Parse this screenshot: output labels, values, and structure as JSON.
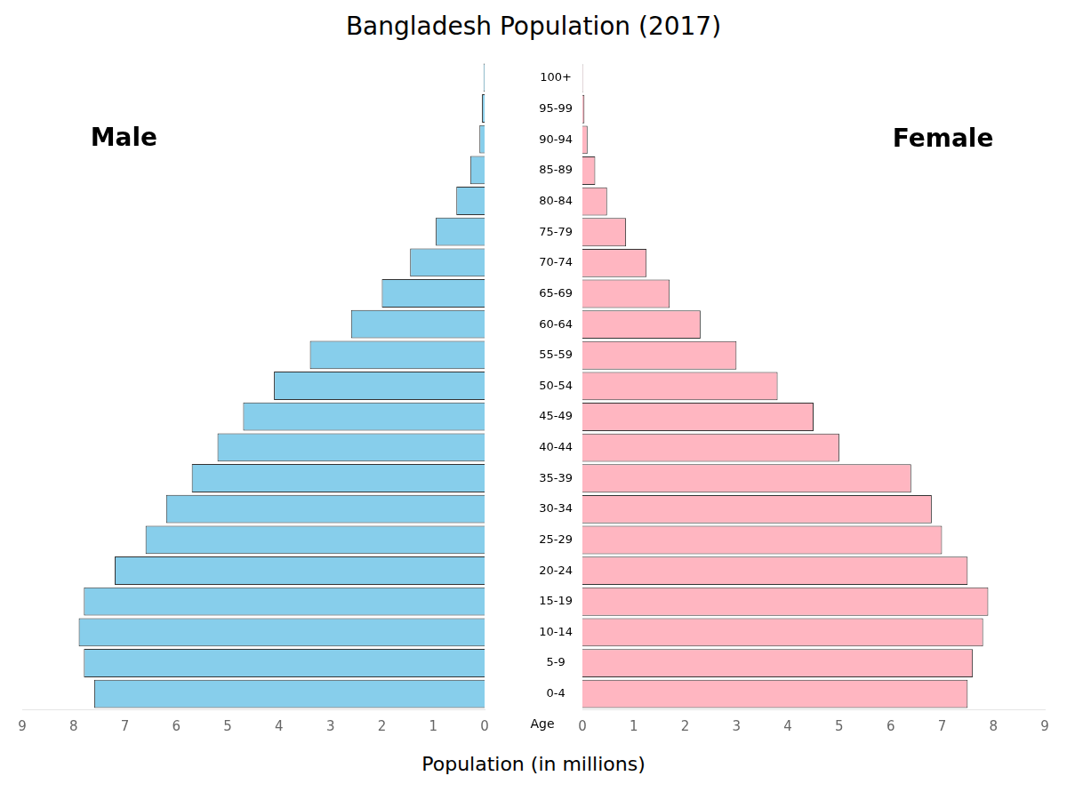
{
  "chart_data": {
    "type": "bar",
    "orientation": "horizontal",
    "title": "Bangladesh Population (2017)",
    "xlabel": "Population (in millions)",
    "ylabel": "Age",
    "categories": [
      "100+",
      "95-99",
      "90-94",
      "85-89",
      "80-84",
      "75-79",
      "70-74",
      "65-69",
      "60-64",
      "55-59",
      "50-54",
      "45-49",
      "40-44",
      "35-39",
      "30-34",
      "25-29",
      "20-24",
      "15-19",
      "10-14",
      "5-9",
      "0-4"
    ],
    "series": [
      {
        "name": "Male",
        "color": "#87CEEB",
        "values": [
          0.02,
          0.05,
          0.1,
          0.28,
          0.55,
          0.95,
          1.45,
          2.0,
          2.6,
          3.4,
          4.1,
          4.7,
          5.2,
          5.7,
          6.2,
          6.6,
          7.2,
          7.8,
          7.9,
          7.8,
          7.6
        ]
      },
      {
        "name": "Female",
        "color": "#FFB6C1",
        "values": [
          0.01,
          0.04,
          0.1,
          0.25,
          0.48,
          0.85,
          1.25,
          1.7,
          2.3,
          3.0,
          3.8,
          4.5,
          5.0,
          6.4,
          6.8,
          7.0,
          7.5,
          7.9,
          7.8,
          7.6,
          7.5
        ]
      }
    ],
    "xlim": [
      0,
      9
    ],
    "xticks": [
      0,
      1,
      2,
      3,
      4,
      5,
      6,
      7,
      8,
      9
    ],
    "grid": false
  }
}
